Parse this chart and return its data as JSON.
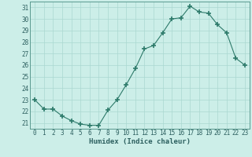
{
  "x": [
    0,
    1,
    2,
    3,
    4,
    5,
    6,
    7,
    8,
    9,
    10,
    11,
    12,
    13,
    14,
    15,
    16,
    17,
    18,
    19,
    20,
    21,
    22,
    23
  ],
  "y": [
    23.0,
    22.2,
    22.2,
    21.6,
    21.2,
    20.9,
    20.8,
    20.8,
    22.1,
    23.0,
    24.3,
    25.7,
    27.4,
    27.7,
    28.8,
    30.0,
    30.1,
    31.1,
    30.6,
    30.5,
    29.5,
    28.8,
    26.6,
    26.0
  ],
  "line_color": "#2d7a6a",
  "marker": "+",
  "marker_size": 4,
  "bg_color": "#cceee8",
  "grid_color": "#aad8d0",
  "xlabel": "Humidex (Indice chaleur)",
  "ylim": [
    20.5,
    31.5
  ],
  "xlim": [
    -0.5,
    23.5
  ],
  "yticks": [
    21,
    22,
    23,
    24,
    25,
    26,
    27,
    28,
    29,
    30,
    31
  ],
  "xticks": [
    0,
    1,
    2,
    3,
    4,
    5,
    6,
    7,
    8,
    9,
    10,
    11,
    12,
    13,
    14,
    15,
    16,
    17,
    18,
    19,
    20,
    21,
    22,
    23
  ],
  "label_fontsize": 6.5,
  "tick_fontsize": 5.5
}
